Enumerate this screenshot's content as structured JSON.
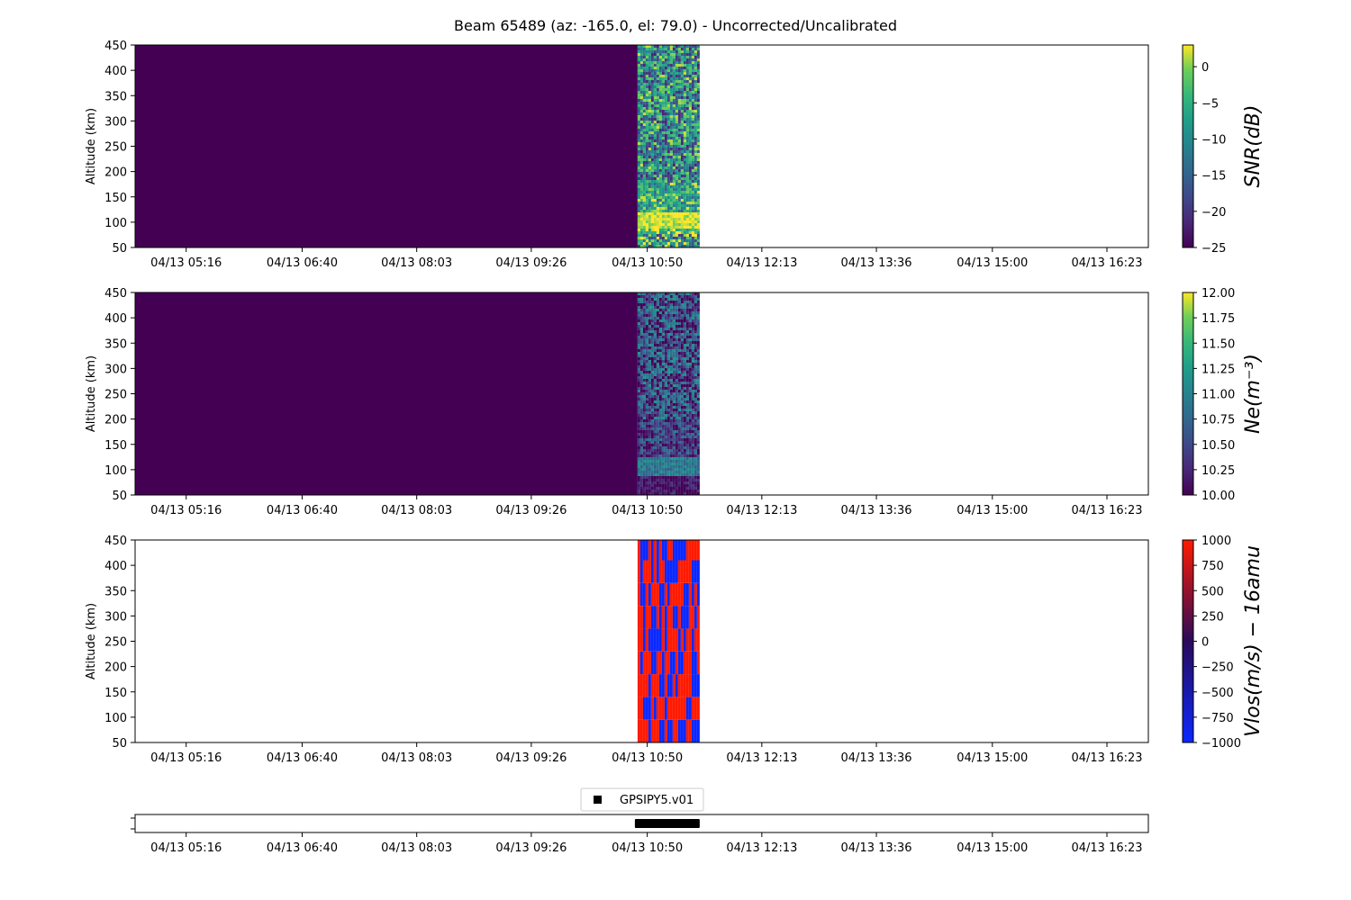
{
  "chart_data": {
    "title": "Beam 65489 (az: -165.0, el: 79.0) - Uncorrected/Uncalibrated",
    "time_ticks": [
      "04/13 05:16",
      "04/13 06:40",
      "04/13 08:03",
      "04/13 09:26",
      "04/13 10:50",
      "04/13 12:13",
      "04/13 13:36",
      "04/13 15:00",
      "04/13 16:23"
    ],
    "x_range": [
      "04/13 04:39",
      "04/13 16:53"
    ],
    "data_window": [
      "04/13 10:43",
      "04/13 11:28"
    ],
    "panels": [
      {
        "type": "heatmap",
        "ylabel": "Altitude (km)",
        "ylim": [
          50,
          450
        ],
        "yticks": [
          50,
          100,
          150,
          200,
          250,
          300,
          350,
          400,
          450
        ],
        "colorbar_label": "SNR(dB)",
        "colormap": "viridis",
        "clim": [
          -25,
          3
        ],
        "colorbar_ticks": [
          "0",
          "−5",
          "−10",
          "−15",
          "−20",
          "−25"
        ],
        "colorbar_tick_values": [
          0,
          -5,
          -10,
          -15,
          -20,
          -25
        ],
        "fill_before_data": -25,
        "layers": [
          {
            "alt": [
              50,
              80
            ],
            "mean": -8,
            "spread": 12
          },
          {
            "alt": [
              80,
              90
            ],
            "mean": -2,
            "spread": 8
          },
          {
            "alt": [
              90,
              120
            ],
            "mean": 2,
            "spread": 3
          },
          {
            "alt": [
              120,
              180
            ],
            "mean": -6,
            "spread": 9
          },
          {
            "alt": [
              180,
              450
            ],
            "mean": -10,
            "spread": 12
          }
        ]
      },
      {
        "type": "heatmap",
        "ylabel": "Altitude (km)",
        "ylim": [
          50,
          450
        ],
        "yticks": [
          50,
          100,
          150,
          200,
          250,
          300,
          350,
          400,
          450
        ],
        "colorbar_label": "Ne(m⁻³)",
        "colormap": "viridis",
        "clim": [
          10.0,
          12.0
        ],
        "colorbar_ticks": [
          "12.00",
          "11.75",
          "11.50",
          "11.25",
          "11.00",
          "10.75",
          "10.50",
          "10.25",
          "10.00"
        ],
        "colorbar_tick_values": [
          12.0,
          11.75,
          11.5,
          11.25,
          11.0,
          10.75,
          10.5,
          10.25,
          10.0
        ],
        "fill_before_data": 10.0,
        "layers": [
          {
            "alt": [
              50,
              90
            ],
            "mean": 10.1,
            "spread": 0.3
          },
          {
            "alt": [
              90,
              125
            ],
            "mean": 10.9,
            "spread": 0.25
          },
          {
            "alt": [
              125,
              200
            ],
            "mean": 10.4,
            "spread": 0.5
          },
          {
            "alt": [
              200,
              450
            ],
            "mean": 10.5,
            "spread": 0.7
          }
        ]
      },
      {
        "type": "heatmap",
        "ylabel": "Altitude (km)",
        "ylim": [
          50,
          450
        ],
        "yticks": [
          50,
          100,
          150,
          200,
          250,
          300,
          350,
          400,
          450
        ],
        "colorbar_label": "Vlos(m/s) − 16amu",
        "colormap": "bwr",
        "clim": [
          -1000,
          1000
        ],
        "colorbar_ticks": [
          "1000",
          "750",
          "500",
          "250",
          "0",
          "−250",
          "−500",
          "−750",
          "−1000"
        ],
        "colorbar_tick_values": [
          1000,
          750,
          500,
          250,
          0,
          -250,
          -500,
          -750,
          -1000
        ],
        "fill_before_data": null,
        "values_binary": [
          -1000,
          1000
        ],
        "alt_bin_km": 45
      }
    ],
    "availability": {
      "legend": "GPSIPY5.v01",
      "marker_color": "#000000"
    }
  },
  "colors": {
    "viridis_low": "#440154",
    "viridis_high": "#fde725",
    "red": "#ff1a00",
    "blue": "#0a28ff"
  }
}
